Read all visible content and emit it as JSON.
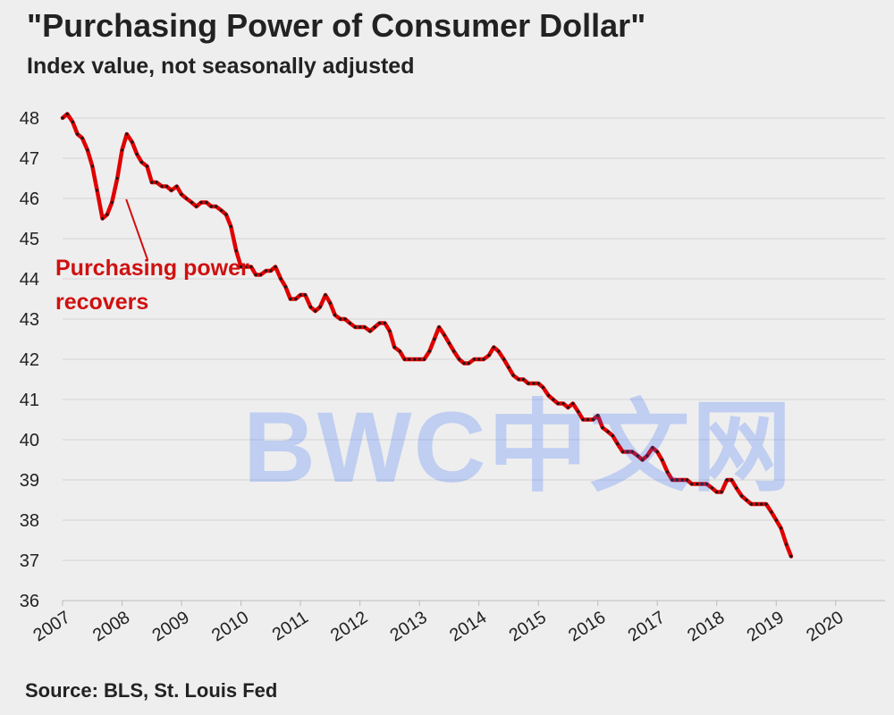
{
  "title": "\"Purchasing Power of Consumer Dollar\"",
  "subtitle": "Index value, not seasonally adjusted",
  "source": "Source: BLS, St. Louis Fed",
  "watermark": "BWC中文网",
  "colors": {
    "line": "#e00000",
    "annotation": "#d01010",
    "grid": "#d4d4d4",
    "text": "#222222"
  },
  "chart_data": {
    "type": "line",
    "title": "\"Purchasing Power of Consumer Dollar\"",
    "subtitle": "Index value, not seasonally adjusted",
    "xlabel": "",
    "ylabel": "",
    "ylim": [
      36,
      48
    ],
    "xlim": [
      2007,
      2020.83
    ],
    "yticks": [
      36,
      37,
      38,
      39,
      40,
      41,
      42,
      43,
      44,
      45,
      46,
      47,
      48
    ],
    "xticks": [
      "2007",
      "2008",
      "2009",
      "2010",
      "2011",
      "2012",
      "2013",
      "2014",
      "2015",
      "2016",
      "2017",
      "2018",
      "2019",
      "2020"
    ],
    "grid": true,
    "series": [
      {
        "name": "Purchasing Power of Consumer Dollar",
        "points": [
          [
            2007.0,
            48.0
          ],
          [
            2007.08,
            48.1
          ],
          [
            2007.17,
            47.9
          ],
          [
            2007.25,
            47.6
          ],
          [
            2007.33,
            47.5
          ],
          [
            2007.42,
            47.2
          ],
          [
            2007.5,
            46.8
          ],
          [
            2007.58,
            46.2
          ],
          [
            2007.67,
            45.5
          ],
          [
            2007.75,
            45.6
          ],
          [
            2007.83,
            45.9
          ],
          [
            2007.92,
            46.5
          ],
          [
            2008.0,
            47.2
          ],
          [
            2008.08,
            47.6
          ],
          [
            2008.17,
            47.4
          ],
          [
            2008.25,
            47.1
          ],
          [
            2008.33,
            46.9
          ],
          [
            2008.42,
            46.8
          ],
          [
            2008.5,
            46.4
          ],
          [
            2008.58,
            46.4
          ],
          [
            2008.67,
            46.3
          ],
          [
            2008.75,
            46.3
          ],
          [
            2008.83,
            46.2
          ],
          [
            2008.92,
            46.3
          ],
          [
            2009.0,
            46.1
          ],
          [
            2009.08,
            46.0
          ],
          [
            2009.17,
            45.9
          ],
          [
            2009.25,
            45.8
          ],
          [
            2009.33,
            45.9
          ],
          [
            2009.42,
            45.9
          ],
          [
            2009.5,
            45.8
          ],
          [
            2009.58,
            45.8
          ],
          [
            2009.67,
            45.7
          ],
          [
            2009.75,
            45.6
          ],
          [
            2009.83,
            45.3
          ],
          [
            2009.92,
            44.7
          ],
          [
            2010.0,
            44.3
          ],
          [
            2010.08,
            44.3
          ],
          [
            2010.17,
            44.3
          ],
          [
            2010.25,
            44.1
          ],
          [
            2010.33,
            44.1
          ],
          [
            2010.42,
            44.2
          ],
          [
            2010.5,
            44.2
          ],
          [
            2010.58,
            44.3
          ],
          [
            2010.67,
            44.0
          ],
          [
            2010.75,
            43.8
          ],
          [
            2010.83,
            43.5
          ],
          [
            2010.92,
            43.5
          ],
          [
            2011.0,
            43.6
          ],
          [
            2011.08,
            43.6
          ],
          [
            2011.17,
            43.3
          ],
          [
            2011.25,
            43.2
          ],
          [
            2011.33,
            43.3
          ],
          [
            2011.42,
            43.6
          ],
          [
            2011.5,
            43.4
          ],
          [
            2011.58,
            43.1
          ],
          [
            2011.67,
            43.0
          ],
          [
            2011.75,
            43.0
          ],
          [
            2011.83,
            42.9
          ],
          [
            2011.92,
            42.8
          ],
          [
            2012.0,
            42.8
          ],
          [
            2012.08,
            42.8
          ],
          [
            2012.17,
            42.7
          ],
          [
            2012.25,
            42.8
          ],
          [
            2012.33,
            42.9
          ],
          [
            2012.42,
            42.9
          ],
          [
            2012.5,
            42.7
          ],
          [
            2012.58,
            42.3
          ],
          [
            2012.67,
            42.2
          ],
          [
            2012.75,
            42.0
          ],
          [
            2012.83,
            42.0
          ],
          [
            2012.92,
            42.0
          ],
          [
            2013.0,
            42.0
          ],
          [
            2013.08,
            42.0
          ],
          [
            2013.17,
            42.2
          ],
          [
            2013.25,
            42.5
          ],
          [
            2013.33,
            42.8
          ],
          [
            2013.42,
            42.6
          ],
          [
            2013.5,
            42.4
          ],
          [
            2013.58,
            42.2
          ],
          [
            2013.67,
            42.0
          ],
          [
            2013.75,
            41.9
          ],
          [
            2013.83,
            41.9
          ],
          [
            2013.92,
            42.0
          ],
          [
            2014.0,
            42.0
          ],
          [
            2014.08,
            42.0
          ],
          [
            2014.17,
            42.1
          ],
          [
            2014.25,
            42.3
          ],
          [
            2014.33,
            42.2
          ],
          [
            2014.42,
            42.0
          ],
          [
            2014.5,
            41.8
          ],
          [
            2014.58,
            41.6
          ],
          [
            2014.67,
            41.5
          ],
          [
            2014.75,
            41.5
          ],
          [
            2014.83,
            41.4
          ],
          [
            2014.92,
            41.4
          ],
          [
            2015.0,
            41.4
          ],
          [
            2015.08,
            41.3
          ],
          [
            2015.17,
            41.1
          ],
          [
            2015.25,
            41.0
          ],
          [
            2015.33,
            40.9
          ],
          [
            2015.42,
            40.9
          ],
          [
            2015.5,
            40.8
          ],
          [
            2015.58,
            40.9
          ],
          [
            2015.67,
            40.7
          ],
          [
            2015.75,
            40.5
          ],
          [
            2015.83,
            40.5
          ],
          [
            2015.92,
            40.5
          ],
          [
            2016.0,
            40.6
          ],
          [
            2016.08,
            40.3
          ],
          [
            2016.17,
            40.2
          ],
          [
            2016.25,
            40.1
          ],
          [
            2016.33,
            39.9
          ],
          [
            2016.42,
            39.7
          ],
          [
            2016.5,
            39.7
          ],
          [
            2016.58,
            39.7
          ],
          [
            2016.67,
            39.6
          ],
          [
            2016.75,
            39.5
          ],
          [
            2016.83,
            39.6
          ],
          [
            2016.92,
            39.8
          ],
          [
            2017.0,
            39.7
          ],
          [
            2017.08,
            39.5
          ],
          [
            2017.17,
            39.2
          ],
          [
            2017.25,
            39.0
          ],
          [
            2017.33,
            39.0
          ],
          [
            2017.42,
            39.0
          ],
          [
            2017.5,
            39.0
          ],
          [
            2017.58,
            38.9
          ],
          [
            2017.67,
            38.9
          ],
          [
            2017.75,
            38.9
          ],
          [
            2017.83,
            38.9
          ],
          [
            2017.92,
            38.8
          ],
          [
            2018.0,
            38.7
          ],
          [
            2018.08,
            38.7
          ],
          [
            2018.17,
            39.0
          ],
          [
            2018.25,
            39.0
          ],
          [
            2018.33,
            38.8
          ],
          [
            2018.42,
            38.6
          ],
          [
            2018.5,
            38.5
          ],
          [
            2018.58,
            38.4
          ],
          [
            2018.67,
            38.4
          ],
          [
            2018.75,
            38.4
          ],
          [
            2018.83,
            38.4
          ],
          [
            2018.92,
            38.2
          ],
          [
            2019.0,
            38.0
          ],
          [
            2019.08,
            37.8
          ],
          [
            2019.17,
            37.4
          ],
          [
            2019.25,
            37.1
          ]
        ]
      }
    ],
    "annotations": [
      {
        "text_lines": [
          "Purchasing power",
          "recovers"
        ],
        "points_to": [
          2007.92,
          46.2
        ]
      }
    ]
  }
}
